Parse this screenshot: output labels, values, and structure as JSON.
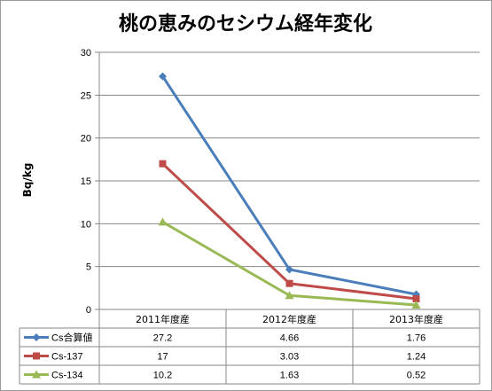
{
  "chart_data": {
    "type": "line",
    "title": "桃の恵みのセシウム経年変化",
    "ylabel": "Bq/kg",
    "xlabel": "",
    "categories": [
      "2011年度産",
      "2012年度産",
      "2013年度産"
    ],
    "ylim": [
      0,
      30
    ],
    "yticks": [
      0,
      5,
      10,
      15,
      20,
      25,
      30
    ],
    "ytick_labels": [
      "0",
      "5",
      "10",
      "15",
      "20",
      "25",
      "30"
    ],
    "grid": "horizontal",
    "legend": "data-table-left",
    "series": [
      {
        "name": "Cs合算値",
        "values": [
          27.2,
          4.66,
          1.76
        ],
        "labels": [
          "27.2",
          "4.66",
          "1.76"
        ],
        "color": "#4a7ebb",
        "marker": "diamond"
      },
      {
        "name": "Cs-137",
        "values": [
          17,
          3.03,
          1.24
        ],
        "labels": [
          "17",
          "3.03",
          "1.24"
        ],
        "color": "#be4b48",
        "marker": "square"
      },
      {
        "name": "Cs-134",
        "values": [
          10.2,
          1.63,
          0.52
        ],
        "labels": [
          "10.2",
          "1.63",
          "0.52"
        ],
        "color": "#98b954",
        "marker": "triangle"
      }
    ]
  }
}
